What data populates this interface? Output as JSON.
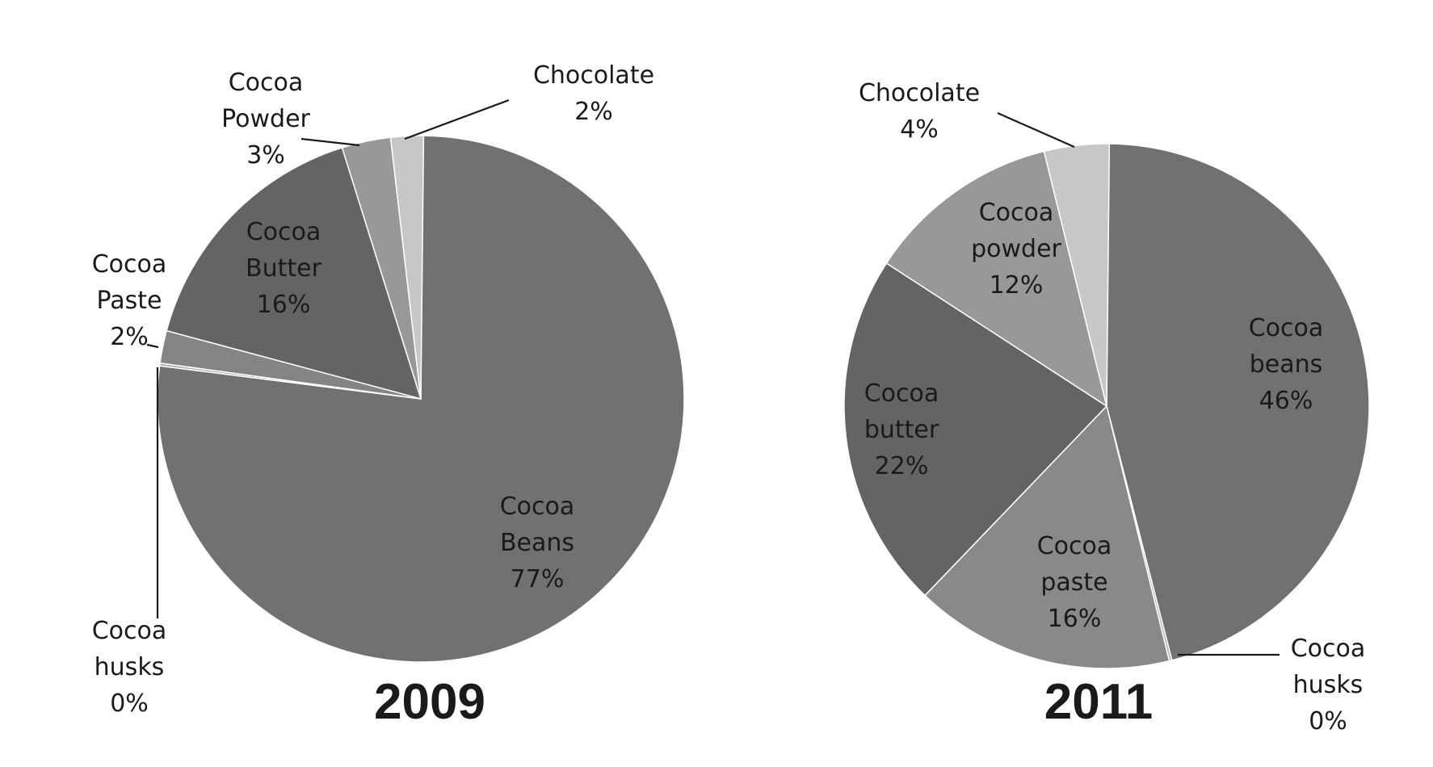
{
  "chart_data": [
    {
      "type": "pie",
      "title": "2009",
      "slices": [
        {
          "name": "Cocoa Beans",
          "value": 77,
          "label_lines": [
            "Cocoa",
            "Beans",
            "77%"
          ],
          "color": "#707173"
        },
        {
          "name": "Cocoa husks",
          "value": 0,
          "label_lines": [
            "Cocoa",
            "husks",
            "0%"
          ],
          "color": "#ababad"
        },
        {
          "name": "Cocoa Paste",
          "value": 2,
          "label_lines": [
            "Cocoa",
            "Paste",
            "2%"
          ],
          "color": "#828486"
        },
        {
          "name": "Cocoa Butter",
          "value": 16,
          "label_lines": [
            "Cocoa",
            "Butter",
            "16%"
          ],
          "color": "#636466"
        },
        {
          "name": "Cocoa Powder",
          "value": 3,
          "label_lines": [
            "Cocoa",
            "Powder",
            "3%"
          ],
          "color": "#97989a"
        },
        {
          "name": "Chocolate",
          "value": 2,
          "label_lines": [
            "Chocolate",
            "2%"
          ],
          "color": "#c6c7c9"
        }
      ]
    },
    {
      "type": "pie",
      "title": "2011",
      "slices": [
        {
          "name": "Cocoa beans",
          "value": 46,
          "label_lines": [
            "Cocoa",
            "beans",
            "46%"
          ],
          "color": "#707173"
        },
        {
          "name": "Cocoa husks",
          "value": 0,
          "label_lines": [
            "Cocoa",
            "husks",
            "0%"
          ],
          "color": "#b3b4b6"
        },
        {
          "name": "Cocoa paste",
          "value": 16,
          "label_lines": [
            "Cocoa",
            "paste",
            "16%"
          ],
          "color": "#87898b"
        },
        {
          "name": "Cocoa butter",
          "value": 22,
          "label_lines": [
            "Cocoa",
            "butter",
            "22%"
          ],
          "color": "#636466"
        },
        {
          "name": "Cocoa powder",
          "value": 12,
          "label_lines": [
            "Cocoa",
            "powder",
            "12%"
          ],
          "color": "#97989a"
        },
        {
          "name": "Chocolate",
          "value": 4,
          "label_lines": [
            "Chocolate",
            "4%"
          ],
          "color": "#c6c7c9"
        }
      ]
    }
  ]
}
